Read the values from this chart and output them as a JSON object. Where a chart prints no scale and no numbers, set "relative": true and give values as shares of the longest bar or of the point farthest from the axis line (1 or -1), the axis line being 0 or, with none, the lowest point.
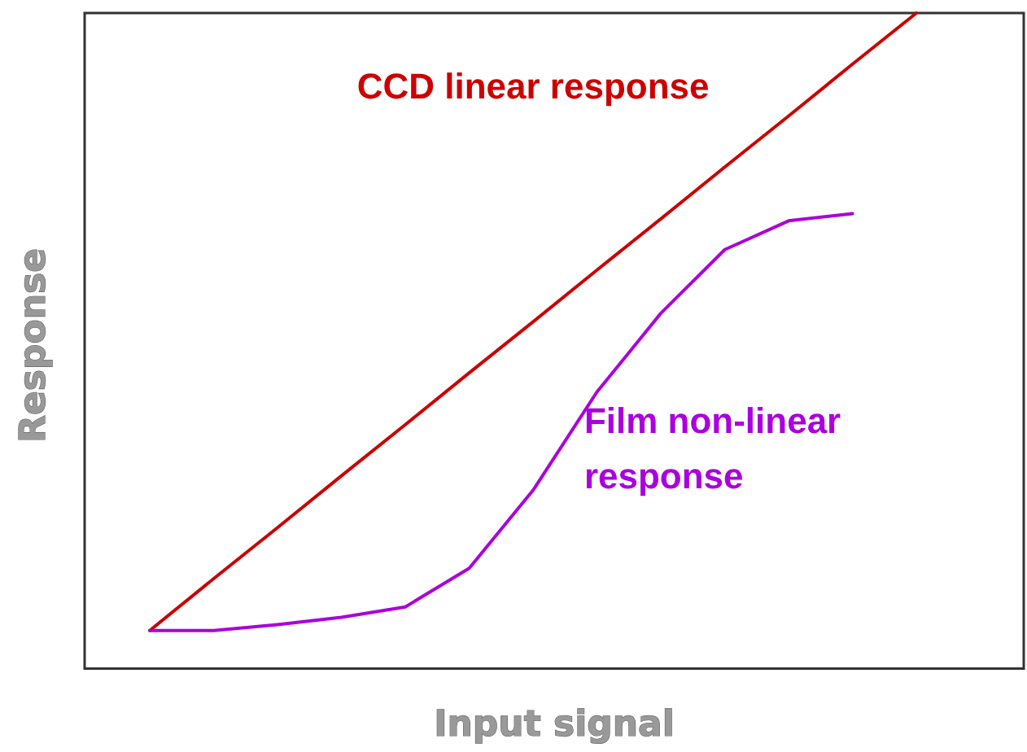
{
  "chart_data": {
    "type": "line",
    "xlabel": "Input signal",
    "ylabel": "Response",
    "relative": true,
    "tick_labels": false,
    "grid": false,
    "legend": false,
    "marker": "none",
    "line_style": "solid",
    "categories": [
      null,
      null,
      null,
      null,
      null,
      null,
      null,
      null,
      null,
      null,
      null,
      null,
      null
    ],
    "series": [
      {
        "name": "CCD linear response",
        "color": "#cc0000",
        "values": [
          0.058,
          0.137,
          0.215,
          0.294,
          0.372,
          0.451,
          0.529,
          0.608,
          0.686,
          0.765,
          0.843,
          0.922,
          1
        ]
      },
      {
        "name": "Film non-linear\nresponse",
        "color": "#aa00dd",
        "values": [
          0.058,
          0.058,
          0.067,
          0.078,
          0.094,
          0.153,
          0.272,
          0.422,
          0.542,
          0.639,
          0.683,
          0.694,
          null
        ]
      }
    ]
  }
}
